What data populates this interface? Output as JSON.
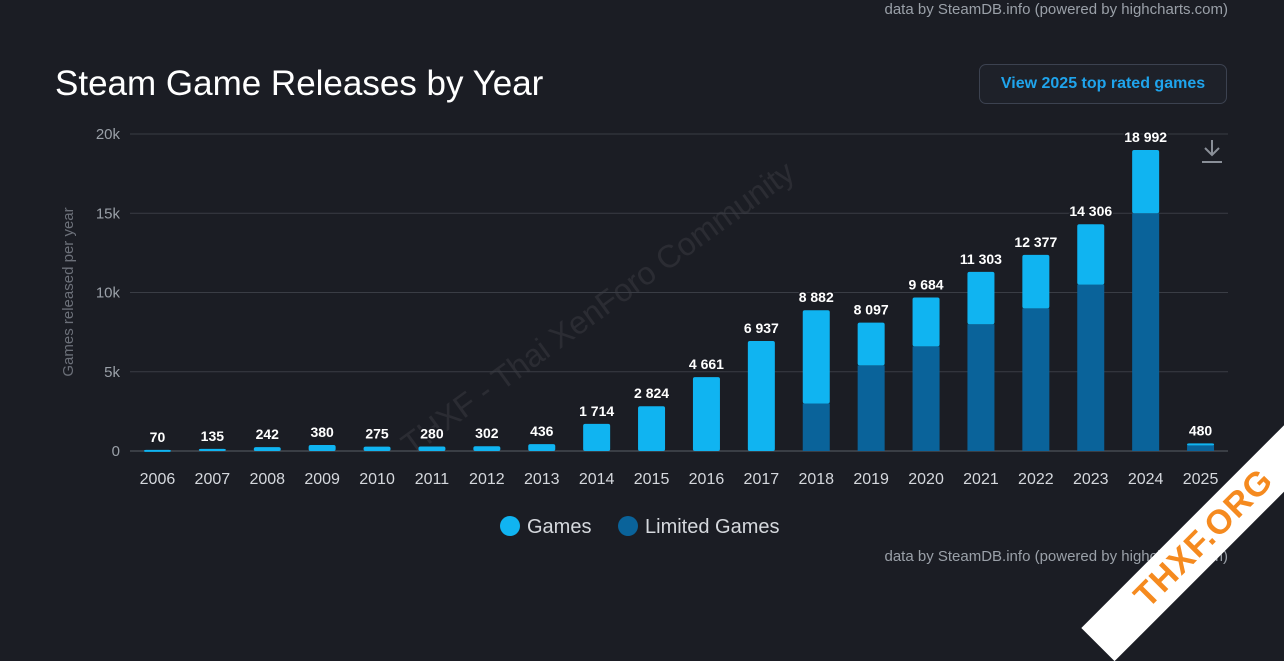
{
  "credit_top": "data by SteamDB.info (powered by highcharts.com)",
  "credit_bottom": "data by SteamDB.info (powered by highcharts.com)",
  "title": "Steam Game Releases by Year",
  "cta_label": "View 2025 top rated games",
  "watermark_text": "THXF - Thai XenForo Community",
  "ribbon_text": "THXF.ORG",
  "download_icon": "download-arrow-icon",
  "colors": {
    "games": "#10b4f1",
    "limited": "#0a639a",
    "grid": "#3a3d45"
  },
  "chart_data": {
    "type": "bar",
    "stacked": true,
    "categories": [
      "2006",
      "2007",
      "2008",
      "2009",
      "2010",
      "2011",
      "2012",
      "2013",
      "2014",
      "2015",
      "2016",
      "2017",
      "2018",
      "2019",
      "2020",
      "2021",
      "2022",
      "2023",
      "2024",
      "2025"
    ],
    "series": [
      {
        "name": "Games",
        "values": [
          70,
          135,
          242,
          380,
          275,
          280,
          302,
          436,
          1714,
          2824,
          4661,
          6937,
          5882,
          2697,
          3084,
          3303,
          3377,
          3806,
          3992,
          80
        ]
      },
      {
        "name": "Limited Games",
        "values": [
          0,
          0,
          0,
          0,
          0,
          0,
          0,
          0,
          0,
          0,
          0,
          0,
          3000,
          5400,
          6600,
          8000,
          9000,
          10500,
          15000,
          400
        ]
      }
    ],
    "totals": [
      "70",
      "135",
      "242",
      "380",
      "275",
      "280",
      "302",
      "436",
      "1 714",
      "2 824",
      "4 661",
      "6 937",
      "8 882",
      "8 097",
      "9 684",
      "11 303",
      "12 377",
      "14 306",
      "18 992",
      "480"
    ],
    "ylabel": "Games released per year",
    "yticks": [
      "0",
      "5k",
      "10k",
      "15k",
      "20k"
    ],
    "ylim": [
      0,
      20000
    ],
    "legend": "bottom-center",
    "grid": true
  }
}
